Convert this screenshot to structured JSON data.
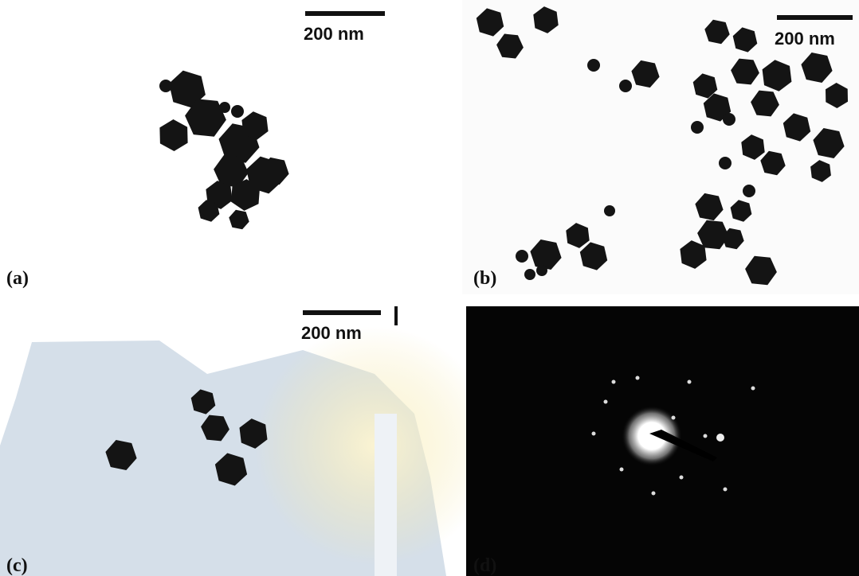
{
  "panels": [
    {
      "label": "(a)",
      "scale_bar": "200 nm"
    },
    {
      "label": "(b)",
      "scale_bar": "200 nm"
    },
    {
      "label": "(c)",
      "scale_bar": "200 nm"
    },
    {
      "label": "(d)"
    }
  ]
}
